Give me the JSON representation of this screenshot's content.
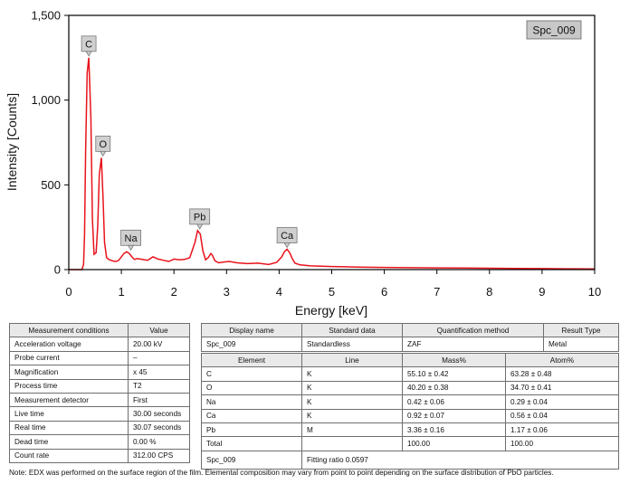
{
  "chart_data": {
    "type": "line",
    "xlabel": "Energy [keV]",
    "ylabel": "Intensity [Counts]",
    "xlim": [
      0,
      10
    ],
    "ylim": [
      0,
      1500
    ],
    "x_ticks": [
      "0",
      "1",
      "2",
      "3",
      "4",
      "5",
      "6",
      "7",
      "8",
      "9",
      "10"
    ],
    "y_ticks": [
      "0",
      "500",
      "1,000",
      "1,500"
    ],
    "grid": false,
    "line_color": "#e8131b",
    "legend_box": "Spc_009",
    "series": [
      {
        "x": [
          0.0,
          0.25,
          0.28,
          0.3,
          0.32,
          0.35,
          0.38,
          0.42,
          0.45,
          0.48,
          0.52,
          0.55,
          0.58,
          0.62,
          0.65,
          0.68,
          0.72,
          0.76,
          0.8,
          0.85,
          0.9,
          0.95,
          1.0,
          1.05,
          1.1,
          1.15,
          1.2,
          1.25,
          1.3,
          1.4,
          1.5,
          1.6,
          1.7,
          1.8,
          1.9,
          2.0,
          2.1,
          2.2,
          2.3,
          2.4,
          2.45,
          2.5,
          2.55,
          2.6,
          2.65,
          2.7,
          2.73,
          2.78,
          2.85,
          2.95,
          3.05,
          3.2,
          3.4,
          3.6,
          3.8,
          3.95,
          4.05,
          4.1,
          4.15,
          4.2,
          4.25,
          4.3,
          4.4,
          4.6,
          5.0,
          5.5,
          6.0,
          6.5,
          7.0,
          7.5,
          8.0,
          8.5,
          9.0,
          9.5,
          10.0
        ],
        "y": [
          0,
          0,
          30,
          200,
          700,
          1160,
          1250,
          900,
          300,
          90,
          100,
          260,
          560,
          660,
          430,
          160,
          70,
          60,
          55,
          50,
          48,
          55,
          75,
          95,
          105,
          95,
          75,
          60,
          65,
          60,
          55,
          75,
          62,
          55,
          48,
          62,
          58,
          60,
          70,
          160,
          230,
          210,
          110,
          58,
          70,
          95,
          85,
          52,
          40,
          45,
          48,
          40,
          35,
          38,
          30,
          42,
          75,
          105,
          120,
          100,
          65,
          38,
          28,
          22,
          18,
          15,
          13,
          11,
          10,
          9,
          8,
          7,
          6,
          5,
          4
        ]
      }
    ],
    "peaks": [
      {
        "label": "C",
        "x": 0.38,
        "y": 1250
      },
      {
        "label": "O",
        "x": 0.65,
        "y": 660
      },
      {
        "label": "Na",
        "x": 1.18,
        "y": 105
      },
      {
        "label": "Pb",
        "x": 2.49,
        "y": 230
      },
      {
        "label": "Ca",
        "x": 4.15,
        "y": 120
      }
    ]
  },
  "measurement": {
    "headers": [
      "Measurement conditions",
      "Value"
    ],
    "rows": [
      [
        "Acceleration voltage",
        "20.00 kV"
      ],
      [
        "Probe current",
        "–"
      ],
      [
        "Magnification",
        "x 45"
      ],
      [
        "Process time",
        "T2"
      ],
      [
        "Measurement detector",
        "First"
      ],
      [
        "Live time",
        "30.00 seconds"
      ],
      [
        "Real time",
        "30.07 seconds"
      ],
      [
        "Dead time",
        "0.00 %"
      ],
      [
        "Count rate",
        "312.00 CPS"
      ]
    ]
  },
  "info": {
    "headers": [
      "Display name",
      "Standard data",
      "Quantification method",
      "Result Type"
    ],
    "row": [
      "Spc_009",
      "Standardless",
      "ZAF",
      "Metal"
    ]
  },
  "composition": {
    "headers": [
      "Element",
      "Line",
      "Mass%",
      "Atom%"
    ],
    "rows": [
      [
        "C",
        "K",
        "55.10 ± 0.42",
        "63.28 ± 0.48"
      ],
      [
        "O",
        "K",
        "40.20 ± 0.38",
        "34.70 ± 0.41"
      ],
      [
        "Na",
        "K",
        "0.42 ± 0.06",
        "0.29 ± 0.04"
      ],
      [
        "Ca",
        "K",
        "0.92 ± 0.07",
        "0.56 ± 0.04"
      ],
      [
        "Pb",
        "M",
        "3.36 ± 0.16",
        "1.17 ± 0.06"
      ]
    ],
    "total": [
      "Total",
      "",
      "100.00",
      "100.00"
    ],
    "footer_name": "Spc_009",
    "fitting_ratio": "Fitting ratio 0.0597"
  },
  "note": "Note: EDX was performed on the surface region of the film. Elemental composition may vary from point to point depending on the surface distribution of PbO particles."
}
